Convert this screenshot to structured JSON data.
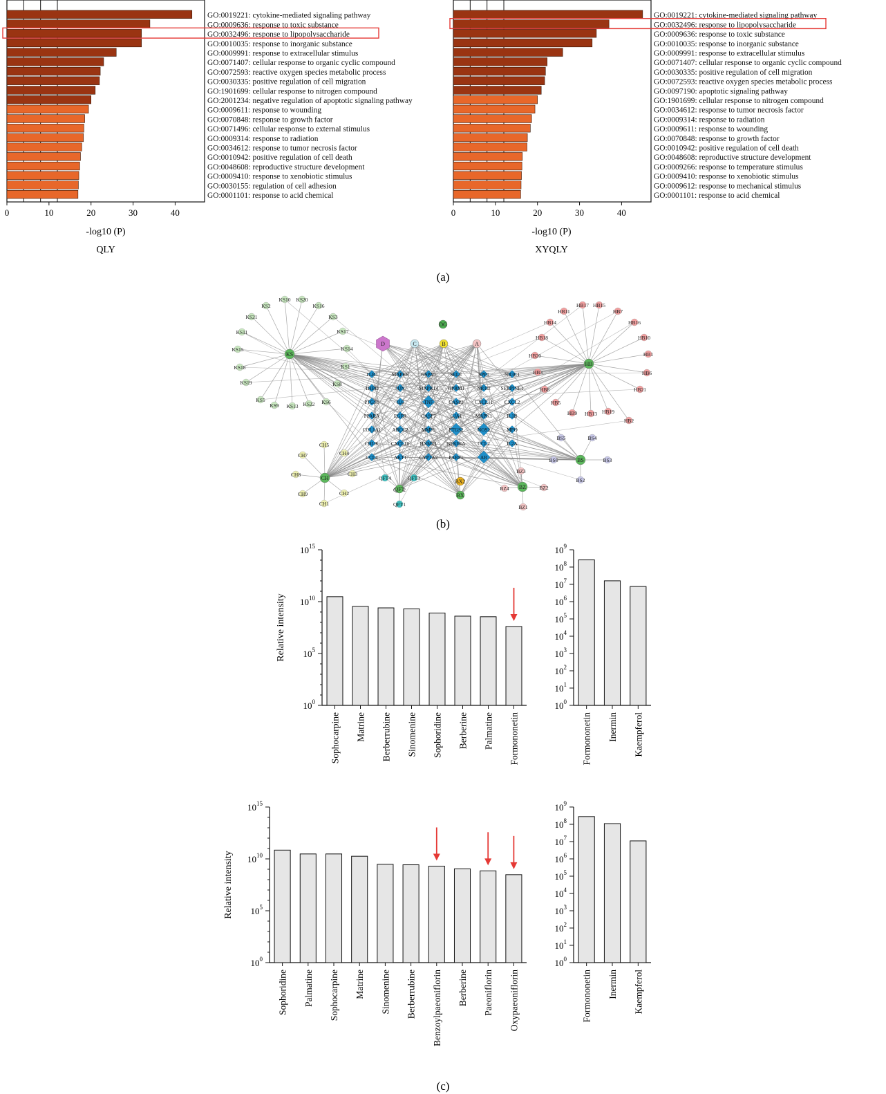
{
  "panel_labels": [
    "(a)",
    "(b)",
    "(c)"
  ],
  "colors": {
    "bar_dark": "#9a3412",
    "bar_light": "#e8672a",
    "bar_gray": "#e6e6e6",
    "highlight": "#e53935",
    "arrow": "#e53935",
    "edge": "#8a8a8a"
  },
  "chart_data": [
    {
      "id": "go-qly",
      "type": "bar",
      "orientation": "horizontal",
      "title": "QLY",
      "xlabel": "-log10 (P)",
      "xlim": [
        0,
        47
      ],
      "xticks": [
        0,
        10,
        20,
        30,
        40
      ],
      "highlight_index": 2,
      "dark_count": 10,
      "categories": [
        "GO:0019221: cytokine-mediated signaling pathway",
        "GO:0009636: response to toxic substance",
        "GO:0032496: response to lipopolysaccharide",
        "GO:0010035: response to inorganic substance",
        "GO:0009991: response to extracellular stimulus",
        "GO:0071407: cellular response to organic cyclic compound",
        "GO:0072593: reactive oxygen species metabolic process",
        "GO:0030335: positive regulation of cell migration",
        "GO:1901699: cellular response to nitrogen compound",
        "GO:2001234: negative regulation of apoptotic signaling pathway",
        "GO:0009611: response to wounding",
        "GO:0070848: response to growth factor",
        "GO:0071496: cellular response to external stimulus",
        "GO:0009314: response to radiation",
        "GO:0034612: response to tumor necrosis factor",
        "GO:0010942: positive regulation of cell death",
        "GO:0048608: reproductive structure development",
        "GO:0009410: response to xenobiotic stimulus",
        "GO:0030155: regulation of cell adhesion",
        "GO:0001101: response to acid chemical"
      ],
      "values": [
        44,
        34,
        32,
        32,
        26,
        23,
        22.2,
        22,
        21,
        20,
        19.4,
        18.5,
        18.3,
        18.2,
        17.8,
        17.5,
        17.3,
        17.1,
        17.0,
        16.9
      ]
    },
    {
      "id": "go-xyqly",
      "type": "bar",
      "orientation": "horizontal",
      "title": "XYQLY",
      "xlabel": "-log10 (P)",
      "xlim": [
        0,
        47
      ],
      "xticks": [
        0,
        10,
        20,
        30,
        40
      ],
      "highlight_index": 1,
      "dark_count": 9,
      "categories": [
        "GO:0019221: cytokine-mediated signaling pathway",
        "GO:0032496: response to lipopolysaccharide",
        "GO:0009636: response to toxic substance",
        "GO:0010035: response to inorganic substance",
        "GO:0009991: response to extracellular stimulus",
        "GO:0071407: cellular response to organic cyclic compound",
        "GO:0030335: positive regulation of cell migration",
        "GO:0072593: reactive oxygen species metabolic process",
        "GO:0097190: apoptotic signaling pathway",
        "GO:1901699: cellular response to nitrogen compound",
        "GO:0034612: response to tumor necrosis factor",
        "GO:0009314: response to radiation",
        "GO:0009611: response to wounding",
        "GO:0070848: response to growth factor",
        "GO:0010942: positive regulation of cell death",
        "GO:0048608: reproductive structure development",
        "GO:0009266: response to temperature stimulus",
        "GO:0009410: response to xenobiotic stimulus",
        "GO:0009612: response to mechanical stimulus",
        "GO:0001101: response to acid chemical"
      ],
      "values": [
        45,
        37,
        34,
        33,
        26,
        22.3,
        21.9,
        21.7,
        20.9,
        20,
        19.4,
        18.6,
        18.3,
        17.6,
        17.5,
        16.4,
        16.3,
        16.2,
        16.1,
        16.0
      ]
    },
    {
      "id": "ri-top-left",
      "type": "bar",
      "yscale": "log",
      "ylabel": "Relative intensity",
      "ylim": [
        1,
        1000000000000000.0
      ],
      "ytick_exponents": [
        0,
        5,
        10,
        15
      ],
      "categories": [
        "Sophocarpine",
        "Matrine",
        "Berberrubine",
        "Sinomenine",
        "Sophoridine",
        "Berberine",
        "Palmatine",
        "Formononetin"
      ],
      "values": [
        30000000000.0,
        3500000000.0,
        2500000000.0,
        2000000000.0,
        800000000.0,
        400000000.0,
        350000000.0,
        40000000.0
      ],
      "arrows": [
        "Formononetin"
      ]
    },
    {
      "id": "ri-top-right",
      "type": "bar",
      "yscale": "log",
      "ylim": [
        1,
        1000000000.0
      ],
      "ytick_exponents": [
        0,
        1,
        2,
        3,
        4,
        5,
        6,
        7,
        8,
        9
      ],
      "categories": [
        "Formononetin",
        "Inermin",
        "Kaempferol"
      ],
      "values": [
        260000000.0,
        16000000.0,
        7500000.0
      ],
      "arrows": []
    },
    {
      "id": "ri-bottom-left",
      "type": "bar",
      "yscale": "log",
      "ylabel": "Relative intensity",
      "ylim": [
        1,
        1000000000000000.0
      ],
      "ytick_exponents": [
        0,
        5,
        10,
        15
      ],
      "categories": [
        "Sophoridine",
        "Palmatine",
        "Sophocarpine",
        "Matrine",
        "Sinomenine",
        "Berberrubine",
        "Benzoylpaeoniflorin",
        "Berberine",
        "Paeoniflorin",
        "Oxypaeoniflorin"
      ],
      "values": [
        70000000000.0,
        30000000000.0,
        30000000000.0,
        18000000000.0,
        3000000000.0,
        2700000000.0,
        2000000000.0,
        1100000000.0,
        700000000.0,
        300000000.0
      ],
      "arrows": [
        "Benzoylpaeoniflorin",
        "Paeoniflorin",
        "Oxypaeoniflorin"
      ]
    },
    {
      "id": "ri-bottom-right",
      "type": "bar",
      "yscale": "log",
      "ylim": [
        1,
        1000000000.0
      ],
      "ytick_exponents": [
        0,
        1,
        2,
        3,
        4,
        5,
        6,
        7,
        8,
        9
      ],
      "categories": [
        "Formononetin",
        "Inermin",
        "Kaempferol"
      ],
      "values": [
        280000000.0,
        110000000.0,
        11000000.0
      ],
      "arrows": []
    }
  ],
  "network": {
    "hubs": [
      {
        "label": "D",
        "color": "#cc77cc",
        "shape": "hexagon"
      },
      {
        "label": "C",
        "color": "#c8e8f0",
        "shape": "circle"
      },
      {
        "label": "B",
        "color": "#f0e030",
        "shape": "circle"
      },
      {
        "label": "A",
        "color": "#f4c4c4",
        "shape": "circle"
      },
      {
        "label": "DG",
        "color": "#4caf50",
        "shape": "circle"
      },
      {
        "label": "KS",
        "color": "#5cb85c",
        "shape": "circle"
      },
      {
        "label": "HB",
        "color": "#5cb85c",
        "shape": "circle"
      },
      {
        "label": "CH",
        "color": "#5cb85c",
        "shape": "circle"
      },
      {
        "label": "BS",
        "color": "#5cb85c",
        "shape": "circle"
      },
      {
        "label": "BZ",
        "color": "#5cb85c",
        "shape": "circle"
      },
      {
        "label": "QFT",
        "color": "#5cb85c",
        "shape": "circle"
      },
      {
        "label": "BX",
        "color": "#5cb85c",
        "shape": "circle"
      },
      {
        "label": "BX2",
        "color": "#e8b020",
        "shape": "circle"
      }
    ],
    "groups": [
      {
        "hub": "KS",
        "color": "#c9e8c0",
        "labels": [
          "KS1",
          "KS2",
          "KS3",
          "KS5",
          "KS6",
          "KS8",
          "KS9",
          "KS10",
          "KS11",
          "KS13",
          "KS14",
          "KS15",
          "KS16",
          "KS17",
          "KS18",
          "KS19",
          "KS20",
          "KS21",
          "KS22"
        ]
      },
      {
        "hub": "HB",
        "color": "#f3a0a0",
        "labels": [
          "HB1",
          "HB2",
          "HB3",
          "HB5",
          "HB6",
          "HB7",
          "HB8",
          "HB9",
          "HB10",
          "HB11",
          "HB13",
          "HB14",
          "HB15",
          "HB16",
          "HB17",
          "HB18",
          "HB19",
          "HB20",
          "HB21"
        ]
      },
      {
        "hub": "CH",
        "color": "#eef0b0",
        "labels": [
          "CH1",
          "CH2",
          "CH3",
          "CH4",
          "CH5",
          "CH7",
          "CH8",
          "CH9"
        ]
      },
      {
        "hub": "BS",
        "color": "#c8c8e8",
        "labels": [
          "BS2",
          "BS3",
          "BS4",
          "BS5",
          "BS6"
        ]
      },
      {
        "hub": "BZ",
        "color": "#f4c4c4",
        "labels": [
          "BZ1",
          "BZ2",
          "BZ3",
          "BZ4"
        ]
      },
      {
        "hub": "QFT",
        "color": "#3fc0c0",
        "labels": [
          "QFT1",
          "QFT2",
          "QFT3",
          "QFT4"
        ]
      }
    ],
    "targets": [
      "TLR4",
      "MAPK8",
      "HSPA5",
      "SELE",
      "SPP1",
      "NR3C1",
      "THBD",
      "JUN",
      "MAPK14",
      "OPRM1",
      "NR1I2",
      "SERPINE1",
      "PTGS1",
      "IL6",
      "TNF",
      "CASP3",
      "CXCL11",
      "CXCL2",
      "PPARA",
      "EGFR",
      "CASP7",
      "GJA1",
      "MAPK1",
      "IL1B",
      "COL1A1",
      "ABCC2",
      "MMP9",
      "PTGS2",
      "NOS2",
      "MPO",
      "CHUK",
      "CXCL10",
      "HNMT1",
      "NFKBIA",
      "CCL2",
      "IL2A",
      "CCL4",
      "AKT1",
      "CYP1A2",
      "PARP1",
      "AR"
    ]
  }
}
